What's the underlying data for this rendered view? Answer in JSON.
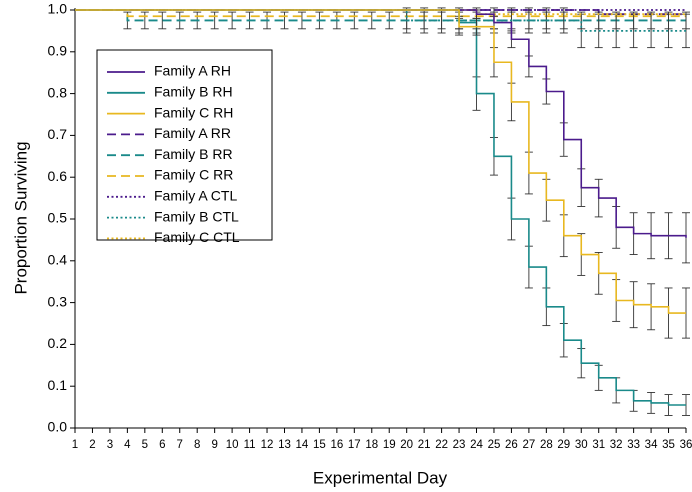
{
  "chart_data": {
    "type": "step",
    "xlabel": "Experimental Day",
    "ylabel": "Proportion Surviving",
    "x": [
      1,
      2,
      3,
      4,
      5,
      6,
      7,
      8,
      9,
      10,
      11,
      12,
      13,
      14,
      15,
      16,
      17,
      18,
      19,
      20,
      21,
      22,
      23,
      24,
      25,
      26,
      27,
      28,
      29,
      30,
      31,
      32,
      33,
      34,
      35,
      36
    ],
    "xlim": [
      1,
      36
    ],
    "xticks": [
      1,
      2,
      3,
      4,
      5,
      6,
      7,
      8,
      9,
      10,
      11,
      12,
      13,
      14,
      15,
      16,
      17,
      18,
      19,
      20,
      21,
      22,
      23,
      24,
      25,
      26,
      27,
      28,
      29,
      30,
      31,
      32,
      33,
      34,
      35,
      36
    ],
    "ylim": [
      0,
      1
    ],
    "yticks": [
      {
        "value": 0,
        "label": "0.0"
      },
      0.1,
      0.2,
      0.3,
      0.4,
      0.5,
      0.6,
      0.7,
      0.8,
      0.9,
      {
        "value": 1,
        "label": "1.0"
      }
    ],
    "legend": "upper left",
    "series": [
      {
        "name": "Family A RH",
        "color": "#4b1b8c",
        "style": "solid",
        "values": [
          1,
          1,
          1,
          1,
          1,
          1,
          1,
          1,
          1,
          1,
          1,
          1,
          1,
          1,
          1,
          1,
          1,
          1,
          1,
          1,
          1,
          1,
          1,
          0.99,
          0.97,
          0.93,
          0.865,
          0.805,
          0.69,
          0.575,
          0.55,
          0.48,
          0.465,
          0.46,
          0.46,
          0.455
        ],
        "errors": [
          null,
          null,
          null,
          null,
          null,
          null,
          null,
          null,
          null,
          null,
          null,
          null,
          null,
          null,
          null,
          null,
          null,
          null,
          null,
          null,
          null,
          null,
          null,
          0.01,
          0.015,
          0.02,
          0.025,
          0.03,
          0.04,
          0.045,
          0.045,
          0.05,
          0.05,
          0.055,
          0.055,
          0.06
        ]
      },
      {
        "name": "Family B RH",
        "color": "#1a8a8a",
        "style": "solid",
        "values": [
          1,
          1,
          1,
          1,
          1,
          1,
          1,
          1,
          1,
          1,
          1,
          1,
          1,
          1,
          1,
          1,
          1,
          1,
          1,
          1,
          1,
          1,
          0.97,
          0.8,
          0.65,
          0.5,
          0.385,
          0.29,
          0.21,
          0.155,
          0.12,
          0.09,
          0.065,
          0.06,
          0.055,
          0.055
        ],
        "errors": [
          null,
          null,
          null,
          null,
          null,
          null,
          null,
          null,
          null,
          null,
          null,
          null,
          null,
          null,
          null,
          null,
          null,
          null,
          null,
          null,
          null,
          null,
          0.015,
          0.04,
          0.045,
          0.05,
          0.05,
          0.045,
          0.04,
          0.035,
          0.03,
          0.03,
          0.025,
          0.025,
          0.025,
          0.025
        ]
      },
      {
        "name": "Family C RH",
        "color": "#e8b820",
        "style": "solid",
        "values": [
          1,
          1,
          1,
          1,
          1,
          1,
          1,
          1,
          1,
          1,
          1,
          1,
          1,
          1,
          1,
          1,
          1,
          1,
          1,
          1,
          1,
          1,
          0.96,
          0.96,
          0.875,
          0.78,
          0.61,
          0.545,
          0.46,
          0.415,
          0.37,
          0.305,
          0.295,
          0.29,
          0.275,
          0.275
        ],
        "errors": [
          null,
          null,
          null,
          null,
          null,
          null,
          null,
          null,
          null,
          null,
          null,
          null,
          null,
          null,
          null,
          null,
          null,
          null,
          null,
          null,
          null,
          null,
          0.02,
          0.02,
          0.035,
          0.045,
          0.05,
          0.05,
          0.05,
          0.05,
          0.05,
          0.05,
          0.055,
          0.055,
          0.06,
          0.06
        ]
      },
      {
        "name": "Family A RR",
        "color": "#4b1b8c",
        "style": "dashed",
        "values": [
          1,
          1,
          1,
          1,
          1,
          1,
          1,
          1,
          1,
          1,
          1,
          1,
          1,
          1,
          1,
          1,
          1,
          1,
          1,
          1,
          1,
          1,
          1,
          1,
          1,
          1,
          1,
          1,
          1,
          1,
          0.99,
          0.99,
          0.99,
          0.99,
          0.99,
          0.99
        ]
      },
      {
        "name": "Family B RR",
        "color": "#1a8a8a",
        "style": "dashed",
        "values": [
          1,
          1,
          1,
          0.975,
          0.975,
          0.975,
          0.975,
          0.975,
          0.975,
          0.975,
          0.975,
          0.975,
          0.975,
          0.975,
          0.975,
          0.975,
          0.975,
          0.975,
          0.975,
          0.975,
          0.975,
          0.975,
          0.975,
          0.975,
          0.975,
          0.975,
          0.975,
          0.975,
          0.975,
          0.975,
          0.975,
          0.975,
          0.975,
          0.975,
          0.975,
          0.975
        ],
        "errors": [
          null,
          null,
          null,
          0.02,
          0.02,
          0.02,
          0.02,
          0.02,
          0.02,
          0.02,
          0.02,
          0.02,
          0.02,
          0.02,
          0.02,
          0.02,
          0.02,
          0.02,
          0.02,
          0.02,
          0.02,
          0.02,
          0.02,
          0.02,
          0.02,
          0.02,
          0.02,
          0.02,
          0.02,
          0.02,
          0.02,
          0.02,
          0.02,
          0.02,
          0.02,
          0.02
        ]
      },
      {
        "name": "Family C RR",
        "color": "#e8b820",
        "style": "dashed",
        "values": [
          1,
          1,
          1,
          0.985,
          0.985,
          0.985,
          0.985,
          0.985,
          0.985,
          0.985,
          0.985,
          0.985,
          0.985,
          0.985,
          0.985,
          0.985,
          0.985,
          0.985,
          0.985,
          0.985,
          0.985,
          0.985,
          0.985,
          0.985,
          0.985,
          0.985,
          0.985,
          0.985,
          0.985,
          0.985,
          0.985,
          0.985,
          0.985,
          0.985,
          0.985,
          0.985
        ]
      },
      {
        "name": "Family A CTL",
        "color": "#4b1b8c",
        "style": "dotted",
        "values": [
          1,
          1,
          1,
          1,
          1,
          1,
          1,
          1,
          1,
          1,
          1,
          1,
          1,
          1,
          1,
          1,
          1,
          1,
          1,
          1,
          1,
          1,
          1,
          1,
          1,
          1,
          1,
          1,
          1,
          1,
          1,
          1,
          1,
          1,
          1,
          1
        ]
      },
      {
        "name": "Family B CTL",
        "color": "#1a8a8a",
        "style": "dotted",
        "values": [
          1,
          1,
          1,
          1,
          1,
          1,
          1,
          1,
          1,
          1,
          1,
          1,
          1,
          1,
          1,
          1,
          1,
          1,
          1,
          0.975,
          0.975,
          0.975,
          0.975,
          0.975,
          0.975,
          0.975,
          0.975,
          0.975,
          0.975,
          0.95,
          0.95,
          0.95,
          0.95,
          0.95,
          0.95,
          0.95
        ],
        "errors": [
          null,
          null,
          null,
          null,
          null,
          null,
          null,
          null,
          null,
          null,
          null,
          null,
          null,
          null,
          null,
          null,
          null,
          null,
          null,
          0.03,
          0.03,
          0.03,
          0.03,
          0.03,
          0.03,
          0.03,
          0.03,
          0.03,
          0.03,
          0.04,
          0.04,
          0.04,
          0.04,
          0.04,
          0.04,
          0.04
        ]
      },
      {
        "name": "Family C CTL",
        "color": "#e8b820",
        "style": "dotted",
        "values": [
          1,
          1,
          1,
          1,
          1,
          1,
          1,
          1,
          1,
          1,
          1,
          1,
          1,
          1,
          1,
          1,
          1,
          1,
          1,
          1,
          1,
          1,
          1,
          0.99,
          0.99,
          0.99,
          0.99,
          0.99,
          0.99,
          0.99,
          0.99,
          0.99,
          0.99,
          0.99,
          0.99,
          0.99
        ]
      }
    ]
  }
}
